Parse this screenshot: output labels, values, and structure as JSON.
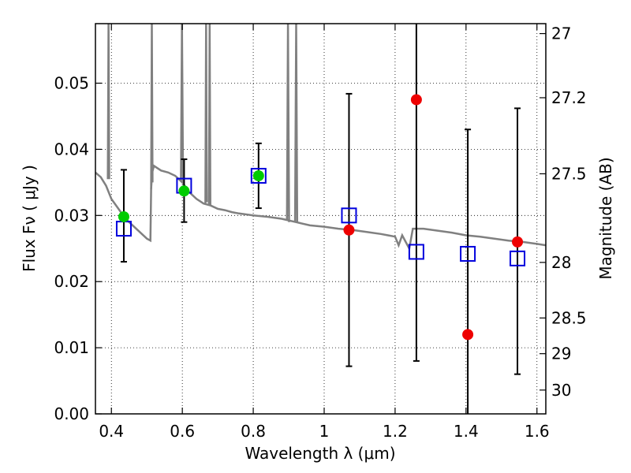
{
  "chart_data": {
    "type": "scatter",
    "xlabel": "Wavelength  λ (μm)",
    "ylabel": "Flux  Fν  ( μJy )",
    "ylabel_right": "Magnitude (AB)",
    "xlim": [
      0.355,
      1.625
    ],
    "ylim": [
      0.0,
      0.059
    ],
    "grid": true,
    "x_ticks": [
      0.4,
      0.6,
      0.8,
      1.0,
      1.2,
      1.4,
      1.6
    ],
    "x_tick_labels": [
      "0.4",
      "0.6",
      "0.8",
      "1",
      "1.2",
      "1.4",
      "1.6"
    ],
    "y_ticks": [
      0.0,
      0.01,
      0.02,
      0.03,
      0.04,
      0.05
    ],
    "y_tick_labels": [
      "0.00",
      "0.01",
      "0.02",
      "0.03",
      "0.04",
      "0.05"
    ],
    "right_ticks": [
      {
        "label": "27",
        "flux": 0.0575
      },
      {
        "label": "27.2",
        "flux": 0.0478
      },
      {
        "label": "27.5",
        "flux": 0.0363
      },
      {
        "label": "28",
        "flux": 0.0229
      },
      {
        "label": "28.5",
        "flux": 0.0145
      },
      {
        "label": "29",
        "flux": 0.0091
      },
      {
        "label": "30",
        "flux": 0.0036
      }
    ],
    "template_spectrum": {
      "color": "#808080",
      "x": [
        0.355,
        0.37,
        0.385,
        0.4,
        0.42,
        0.44,
        0.46,
        0.48,
        0.5,
        0.51,
        0.512,
        0.515,
        0.52,
        0.54,
        0.56,
        0.58,
        0.6,
        0.62,
        0.64,
        0.66,
        0.68,
        0.7,
        0.72,
        0.74,
        0.76,
        0.8,
        0.84,
        0.88,
        0.92,
        0.96,
        1.0,
        1.04,
        1.08,
        1.12,
        1.16,
        1.18,
        1.2,
        1.21,
        1.22,
        1.24,
        1.25,
        1.28,
        1.32,
        1.36,
        1.4,
        1.44,
        1.48,
        1.52,
        1.56,
        1.6,
        1.625
      ],
      "y": [
        0.0365,
        0.0358,
        0.0345,
        0.0325,
        0.031,
        0.0295,
        0.0285,
        0.0275,
        0.0265,
        0.0262,
        0.034,
        0.0365,
        0.0375,
        0.0368,
        0.0365,
        0.036,
        0.035,
        0.0335,
        0.0325,
        0.0318,
        0.0315,
        0.031,
        0.0308,
        0.0305,
        0.0303,
        0.03,
        0.0298,
        0.0295,
        0.029,
        0.0285,
        0.0283,
        0.028,
        0.0278,
        0.0275,
        0.0272,
        0.027,
        0.0268,
        0.0255,
        0.027,
        0.025,
        0.028,
        0.028,
        0.0277,
        0.0274,
        0.027,
        0.0268,
        0.0265,
        0.0262,
        0.026,
        0.0257,
        0.0255
      ],
      "spikes": [
        {
          "x": [
            0.39,
            0.392,
            0.394
          ],
          "y": [
            0.0355,
            0.059,
            0.0355
          ]
        },
        {
          "x": [
            0.512,
            0.514,
            0.516
          ],
          "y": [
            0.034,
            0.059,
            0.035
          ]
        },
        {
          "x": [
            0.596,
            0.599,
            0.602
          ],
          "y": [
            0.0352,
            0.059,
            0.0348
          ]
        },
        {
          "x": [
            0.665,
            0.667,
            0.669
          ],
          "y": [
            0.0318,
            0.059,
            0.032
          ]
        },
        {
          "x": [
            0.675,
            0.677,
            0.679
          ],
          "y": [
            0.0317,
            0.059,
            0.0316
          ]
        },
        {
          "x": [
            0.895,
            0.898,
            0.901
          ],
          "y": [
            0.0292,
            0.059,
            0.029
          ]
        },
        {
          "x": [
            0.918,
            0.921,
            0.924
          ],
          "y": [
            0.029,
            0.059,
            0.0289
          ]
        }
      ]
    },
    "model_points": {
      "color": "#0000dd",
      "x": [
        0.435,
        0.605,
        0.815,
        1.07,
        1.26,
        1.405,
        1.545
      ],
      "y": [
        0.028,
        0.0345,
        0.036,
        0.03,
        0.0245,
        0.0242,
        0.0235
      ]
    },
    "detections": {
      "color": "#00cc00",
      "x": [
        0.435,
        0.605,
        0.815
      ],
      "y": [
        0.0298,
        0.0337,
        0.036
      ],
      "yerr_low": [
        0.0068,
        0.0047,
        0.0049
      ],
      "yerr_high": [
        0.0071,
        0.0048,
        0.0049
      ]
    },
    "nondetections": {
      "color": "#ee0000",
      "x": [
        1.07,
        1.26,
        1.405,
        1.545
      ],
      "y": [
        0.0278,
        0.0475,
        0.012,
        0.026
      ],
      "yerr_low": [
        0.0206,
        0.0395,
        0.012,
        0.02
      ],
      "yerr_high": [
        0.0206,
        0.0115,
        0.031,
        0.0202
      ]
    }
  }
}
